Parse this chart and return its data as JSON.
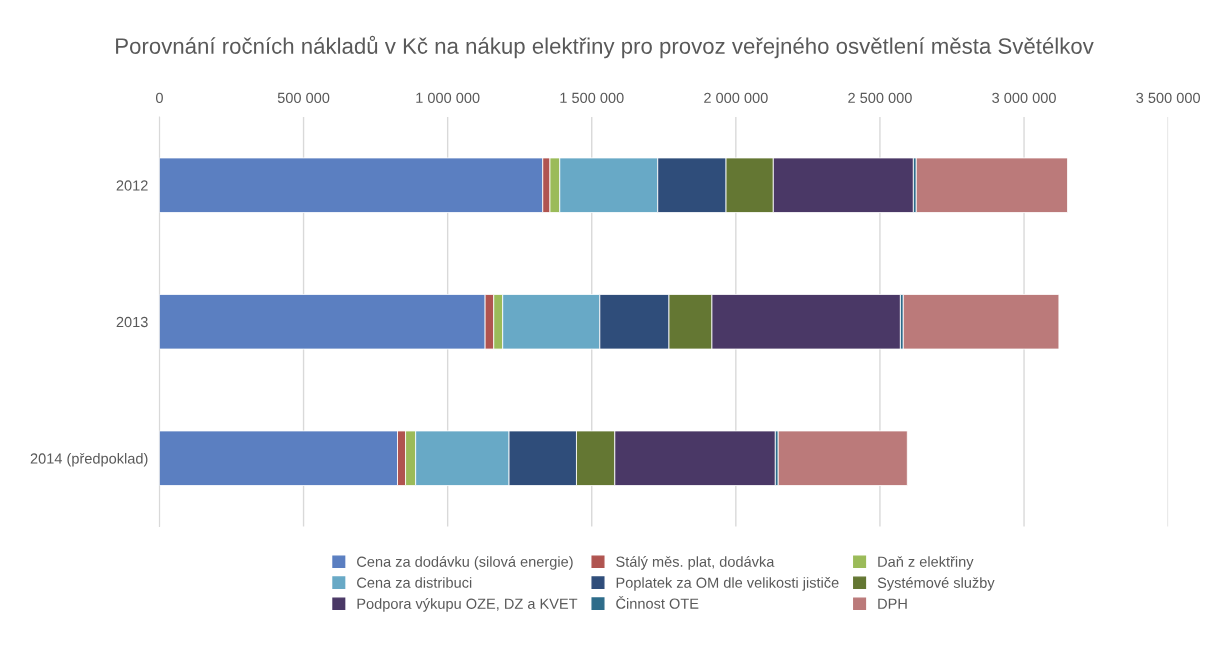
{
  "chart_data": {
    "type": "bar",
    "orientation": "horizontal",
    "stacked": true,
    "title": "Porovnání ročních nákladů v Kč na nákup elektřiny pro provoz veřejného osvětlení města Světélkov",
    "categories": [
      "2012",
      "2013",
      "2014 (předpoklad)"
    ],
    "series": [
      {
        "name": "Cena za dodávku (silová energie)",
        "color": "#5b7fc1",
        "values": [
          1330000,
          1130000,
          826000
        ]
      },
      {
        "name": "Stálý měs. plat, dodávka",
        "color": "#b05450",
        "values": [
          25000,
          30000,
          28000
        ]
      },
      {
        "name": "Daň z elektřiny",
        "color": "#9bbb59",
        "values": [
          34000,
          31000,
          35000
        ]
      },
      {
        "name": "Cena za distribuci",
        "color": "#68a9c6",
        "values": [
          340000,
          337000,
          324000
        ]
      },
      {
        "name": "Poplatek za OM dle velikosti jističe",
        "color": "#2f4d7a",
        "values": [
          237000,
          240000,
          234000
        ]
      },
      {
        "name": "Systémové služby",
        "color": "#647733",
        "values": [
          164000,
          149000,
          133000
        ]
      },
      {
        "name": "Podpora výkupu OZE, DZ a KVET",
        "color": "#4a3866",
        "values": [
          486000,
          654000,
          557000
        ]
      },
      {
        "name": "Činnost OTE",
        "color": "#2e6c8a",
        "values": [
          10000,
          10000,
          10000
        ]
      },
      {
        "name": "DPH",
        "color": "#bb7a7a",
        "values": [
          525000,
          540000,
          448000
        ]
      }
    ],
    "xlim": [
      0,
      3500000
    ],
    "xticks": [
      0,
      {
        "value": 500000,
        "label": "500 000"
      },
      {
        "value": 1000000,
        "label": "1 000 000"
      },
      {
        "value": 1500000,
        "label": "1 500 000"
      },
      {
        "value": 2000000,
        "label": "2 000 000"
      },
      {
        "value": 2500000,
        "label": "2 500 000"
      },
      {
        "value": 3000000,
        "label": "3 000 000"
      },
      {
        "value": 3500000,
        "label": "3 500 000"
      }
    ],
    "grid": "x",
    "legend": "bottom"
  }
}
